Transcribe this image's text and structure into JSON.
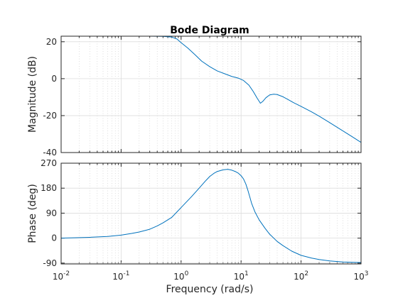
{
  "chart_data": {
    "type": "line",
    "title": "Bode Diagram",
    "xlabel": "Frequency  (rad/s)",
    "xscale": "log",
    "xlim": [
      0.01,
      1000
    ],
    "x_ticks": [
      0.01,
      0.1,
      1,
      10,
      100,
      1000
    ],
    "x_tick_labels": [
      {
        "base": "10",
        "exp": "-2"
      },
      {
        "base": "10",
        "exp": "-1"
      },
      {
        "base": "10",
        "exp": "0"
      },
      {
        "base": "10",
        "exp": "1"
      },
      {
        "base": "10",
        "exp": "2"
      },
      {
        "base": "10",
        "exp": "3"
      }
    ],
    "grid": true,
    "line_color": "#0072BD",
    "panels": [
      {
        "name": "magnitude",
        "ylabel": "Magnitude (dB)",
        "ylim": [
          -40,
          23
        ],
        "y_ticks": [
          20,
          0,
          -20,
          -40
        ],
        "y_tick_labels": [
          "20",
          "0",
          "-20",
          "-40"
        ],
        "points": [
          [
            0.01,
            23.0
          ],
          [
            0.1,
            23.0
          ],
          [
            0.3,
            23.0
          ],
          [
            0.5,
            22.9
          ],
          [
            0.7,
            22.5
          ],
          [
            0.85,
            21.5
          ],
          [
            1.0,
            19.5
          ],
          [
            1.3,
            16.5
          ],
          [
            1.7,
            13.0
          ],
          [
            2.2,
            9.5
          ],
          [
            3.0,
            6.5
          ],
          [
            4.0,
            4.2
          ],
          [
            5.5,
            2.5
          ],
          [
            7.0,
            1.2
          ],
          [
            9.0,
            0.3
          ],
          [
            11.0,
            -1.0
          ],
          [
            13.5,
            -3.5
          ],
          [
            16.0,
            -7.0
          ],
          [
            18.5,
            -10.5
          ],
          [
            21.0,
            -13.3
          ],
          [
            23.0,
            -12.3
          ],
          [
            26.0,
            -10.3
          ],
          [
            30.0,
            -8.8
          ],
          [
            35.0,
            -8.4
          ],
          [
            40.0,
            -8.6
          ],
          [
            50.0,
            -9.8
          ],
          [
            60.0,
            -11.2
          ],
          [
            75.0,
            -13.0
          ],
          [
            100.0,
            -15.0
          ],
          [
            150.0,
            -18.0
          ],
          [
            200.0,
            -20.3
          ],
          [
            300.0,
            -23.8
          ],
          [
            500.0,
            -28.3
          ],
          [
            700.0,
            -31.3
          ],
          [
            1000.0,
            -34.5
          ]
        ]
      },
      {
        "name": "phase",
        "ylabel": "Phase (deg)",
        "ylim": [
          -93,
          270
        ],
        "y_ticks": [
          270,
          180,
          90,
          0,
          -90
        ],
        "y_tick_labels": [
          "270",
          "180",
          "90",
          "0",
          "-90"
        ],
        "points": [
          [
            0.01,
            0.0
          ],
          [
            0.03,
            3.0
          ],
          [
            0.06,
            6.0
          ],
          [
            0.1,
            11.0
          ],
          [
            0.15,
            17.0
          ],
          [
            0.2,
            22.0
          ],
          [
            0.3,
            32.0
          ],
          [
            0.4,
            44.0
          ],
          [
            0.5,
            55.0
          ],
          [
            0.7,
            75.0
          ],
          [
            1.0,
            110.0
          ],
          [
            1.5,
            150.0
          ],
          [
            2.0,
            180.0
          ],
          [
            2.5,
            204.0
          ],
          [
            3.0,
            222.0
          ],
          [
            3.5,
            233.0
          ],
          [
            4.0,
            240.0
          ],
          [
            5.0,
            246.0
          ],
          [
            6.0,
            248.0
          ],
          [
            7.0,
            245.0
          ],
          [
            8.0,
            240.0
          ],
          [
            9.0,
            234.0
          ],
          [
            10.0,
            225.0
          ],
          [
            11.0,
            213.0
          ],
          [
            12.0,
            195.0
          ],
          [
            13.0,
            172.0
          ],
          [
            14.0,
            148.0
          ],
          [
            15.0,
            125.0
          ],
          [
            17.0,
            95.0
          ],
          [
            20.0,
            66.0
          ],
          [
            25.0,
            36.0
          ],
          [
            30.0,
            14.0
          ],
          [
            40.0,
            -12.0
          ],
          [
            50.0,
            -27.0
          ],
          [
            70.0,
            -47.0
          ],
          [
            100.0,
            -62.0
          ],
          [
            150.0,
            -72.0
          ],
          [
            200.0,
            -77.0
          ],
          [
            300.0,
            -82.0
          ],
          [
            500.0,
            -86.0
          ],
          [
            700.0,
            -87.0
          ],
          [
            1000.0,
            -88.0
          ]
        ]
      }
    ]
  }
}
